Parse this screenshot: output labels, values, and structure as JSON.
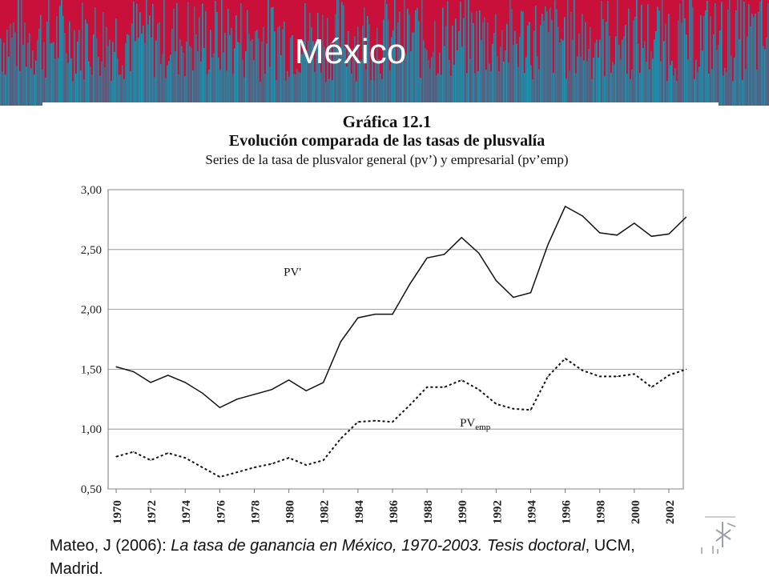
{
  "slide": {
    "title": "México",
    "colors": {
      "banner_red": "#c8103a",
      "banner_teal": "#1f9ab5"
    }
  },
  "chart_data": {
    "type": "line",
    "heading": "Gráfica 12.1",
    "title": "Evolución comparada de las tasas de plusvalía",
    "subtitle": "Series de la tasa de plusvalor general (pv’) y empresarial (pv’emp)",
    "x": [
      1970,
      1971,
      1972,
      1973,
      1974,
      1975,
      1976,
      1977,
      1978,
      1979,
      1980,
      1981,
      1982,
      1983,
      1984,
      1985,
      1986,
      1987,
      1988,
      1989,
      1990,
      1991,
      1992,
      1993,
      1994,
      1995,
      1996,
      1997,
      1998,
      1999,
      2000,
      2001,
      2002,
      2003
    ],
    "x_tick_labels": [
      "1970",
      "1972",
      "1974",
      "1976",
      "1978",
      "1980",
      "1982",
      "1984",
      "1986",
      "1988",
      "1990",
      "1992",
      "1994",
      "1996",
      "1998",
      "2000",
      "2002"
    ],
    "y_tick_labels": [
      "0,50",
      "1,00",
      "1,50",
      "2,00",
      "2,50",
      "3,00"
    ],
    "ylim": [
      0.5,
      3.0
    ],
    "grid": true,
    "series": [
      {
        "name": "PV'",
        "style": "solid",
        "values": [
          1.52,
          1.48,
          1.39,
          1.45,
          1.39,
          1.3,
          1.18,
          1.25,
          1.29,
          1.33,
          1.41,
          1.32,
          1.39,
          1.73,
          1.93,
          1.96,
          1.96,
          2.21,
          2.43,
          2.46,
          2.6,
          2.47,
          2.24,
          2.1,
          2.14,
          2.54,
          2.86,
          2.78,
          2.64,
          2.62,
          2.72,
          2.61,
          2.63,
          2.77
        ]
      },
      {
        "name": "PV",
        "name_sub": "emp",
        "style": "dotted",
        "values": [
          0.77,
          0.81,
          0.74,
          0.8,
          0.76,
          0.68,
          0.6,
          0.64,
          0.68,
          0.71,
          0.76,
          0.7,
          0.74,
          0.92,
          1.06,
          1.07,
          1.06,
          1.2,
          1.35,
          1.35,
          1.41,
          1.33,
          1.21,
          1.17,
          1.16,
          1.44,
          1.59,
          1.49,
          1.44,
          1.44,
          1.46,
          1.35,
          1.45,
          1.5
        ]
      }
    ]
  },
  "citation": {
    "author": "Mateo, J (2006):  ",
    "work": "La tasa de ganancia en México, 1970-2003. Tesis doctoral",
    "publisher": ", UCM, Madrid."
  }
}
